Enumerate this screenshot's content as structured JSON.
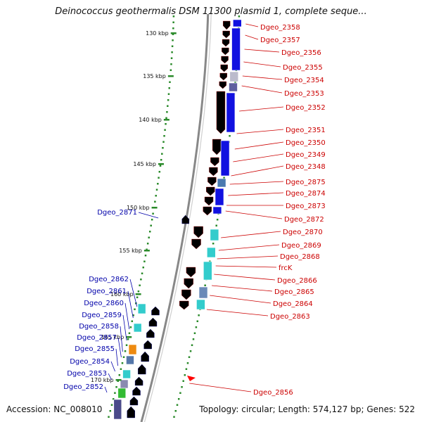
{
  "title": "Deinococcus geothermalis DSM 11300 plasmid 1, complete seque...",
  "footer": {
    "accession": "Accession: NC_008010",
    "summary": "Topology: circular; Length: 574,127 bp; Genes: 522"
  },
  "colors": {
    "forward_gene": "#ff0000",
    "reverse_gene": "#0000ff",
    "cds_blue": "#1111e0",
    "cds_cyan": "#33cccc",
    "ticks": "#2a8a2a",
    "backbone": "#888888",
    "right_label": "#cc0000",
    "left_label": "#0000aa"
  },
  "kbp_ticks": [
    "130 kbp",
    "135 kbp",
    "140 kbp",
    "145 kbp",
    "150 kbp",
    "155 kbp",
    "160 kbp",
    "165 kbp",
    "170 kbp"
  ],
  "right_labels": [
    "Dgeo_2358",
    "Dgeo_2357",
    "Dgeo_2356",
    "Dgeo_2355",
    "Dgeo_2354",
    "Dgeo_2353",
    "Dgeo_2352",
    "Dgeo_2351",
    "Dgeo_2350",
    "Dgeo_2349",
    "Dgeo_2348",
    "Dgeo_2875",
    "Dgeo_2874",
    "Dgeo_2873",
    "Dgeo_2872",
    "Dgeo_2870",
    "Dgeo_2869",
    "Dgeo_2868",
    "frcK",
    "Dgeo_2866",
    "Dgeo_2865",
    "Dgeo_2864",
    "Dgeo_2863",
    "Dgeo_2856"
  ],
  "left_labels": [
    "Dgeo_2871",
    "Dgeo_2862",
    "Dgeo_2861",
    "Dgeo_2860",
    "Dgeo_2859",
    "Dgeo_2858",
    "Dgeo_2857",
    "Dgeo_2855",
    "Dgeo_2854",
    "Dgeo_2853",
    "Dgeo_2852"
  ]
}
